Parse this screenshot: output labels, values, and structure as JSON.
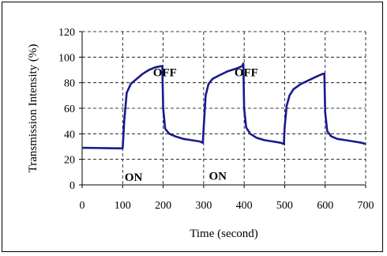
{
  "chart_data": {
    "type": "line",
    "xlabel": "Time (second)",
    "ylabel": "Transmission Intensity (%)",
    "xlim": [
      0,
      700
    ],
    "ylim": [
      0,
      120
    ],
    "x_ticks": [
      0,
      100,
      200,
      300,
      400,
      500,
      600,
      700
    ],
    "y_ticks": [
      0,
      20,
      40,
      60,
      80,
      100,
      120
    ],
    "grid": "dashed",
    "line_color": "#1a1a8c",
    "series": [
      {
        "x": [
          0,
          50,
          100,
          104,
          110,
          120,
          135,
          150,
          165,
          180,
          195,
          198,
          200,
          205,
          215,
          230,
          250,
          270,
          290,
          298,
          300,
          305,
          312,
          322,
          340,
          360,
          380,
          395,
          398,
          400,
          405,
          415,
          430,
          450,
          470,
          490,
          498,
          500,
          505,
          512,
          522,
          540,
          560,
          580,
          595,
          598,
          600,
          605,
          615,
          630,
          650,
          670,
          690,
          700
        ],
        "y": [
          29,
          28.8,
          28.6,
          50,
          72,
          79,
          83,
          87,
          90,
          92,
          93,
          93,
          60,
          44,
          40,
          38,
          36,
          35,
          34,
          33,
          45,
          70,
          79,
          83,
          86,
          89,
          91,
          93,
          95,
          60,
          45,
          40,
          37,
          35,
          34,
          33,
          32,
          45,
          62,
          70,
          75,
          79,
          82,
          85,
          87,
          87,
          57,
          42,
          38,
          36,
          35,
          34,
          33,
          32
        ]
      }
    ],
    "annotations": [
      {
        "text": "ON",
        "x": 105,
        "y": 3
      },
      {
        "text": "OFF",
        "x": 175,
        "y": 85
      },
      {
        "text": "ON",
        "x": 313,
        "y": 4
      },
      {
        "text": "OFF",
        "x": 376,
        "y": 85
      }
    ]
  }
}
